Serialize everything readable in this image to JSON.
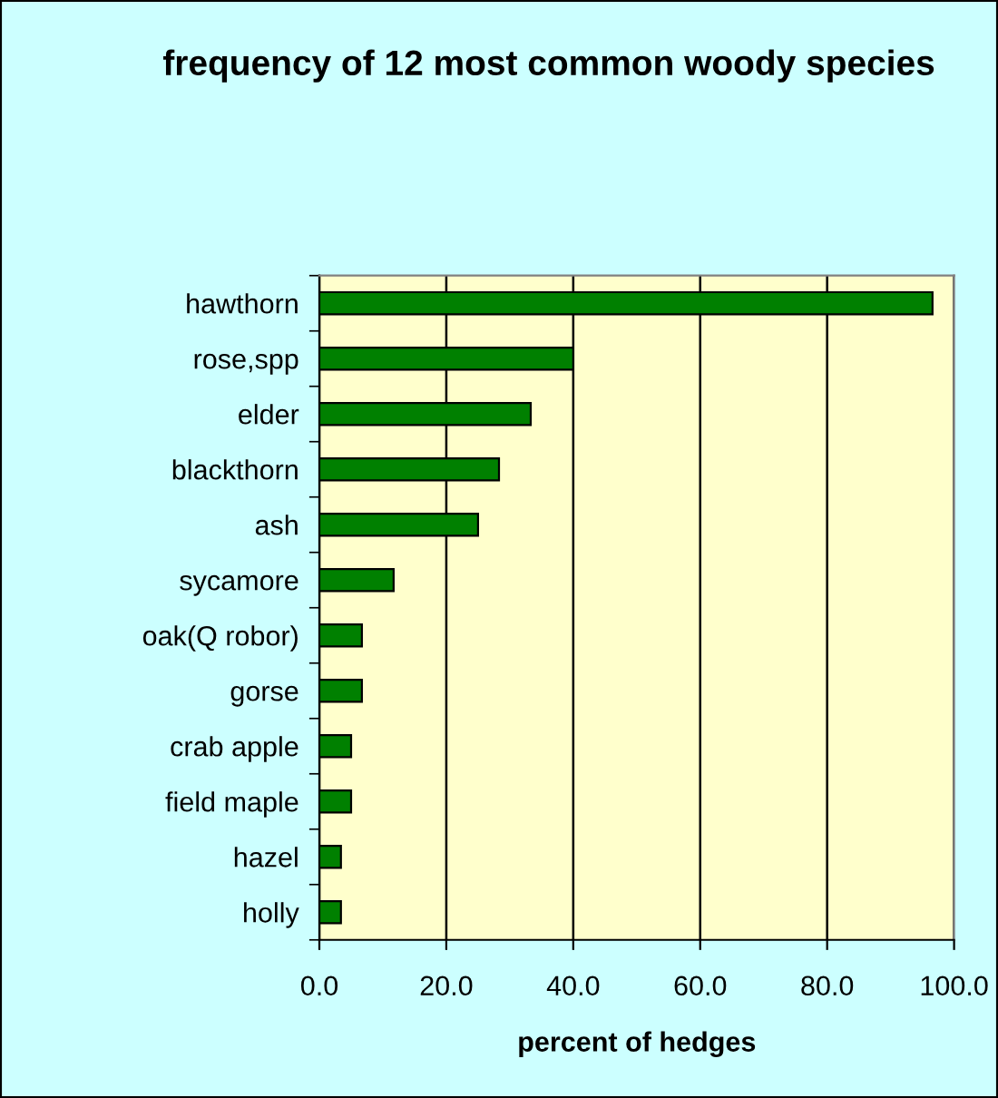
{
  "chart_data": {
    "type": "bar",
    "orientation": "horizontal",
    "title": "frequency of 12 most common woody species",
    "xlabel": "percent of hedges",
    "categories": [
      "hawthorn",
      "rose,spp",
      "elder",
      "blackthorn",
      "ash",
      "sycamore",
      "oak(Q robor)",
      "gorse",
      "crab apple",
      "field maple",
      "hazel",
      "holly"
    ],
    "values": [
      96.6,
      40.0,
      33.3,
      28.3,
      25.0,
      11.7,
      6.7,
      6.7,
      5.0,
      5.0,
      3.4,
      3.4
    ],
    "color": "#008000",
    "xlim": [
      0,
      100
    ],
    "xticks": [
      {
        "value": 0,
        "label": "0.0"
      },
      {
        "value": 20,
        "label": "20.0"
      },
      {
        "value": 40,
        "label": "40.0"
      },
      {
        "value": 60,
        "label": "60.0"
      },
      {
        "value": 80,
        "label": "80.0"
      },
      {
        "value": 100,
        "label": "100.0"
      }
    ],
    "grid": "x",
    "legend": false
  }
}
